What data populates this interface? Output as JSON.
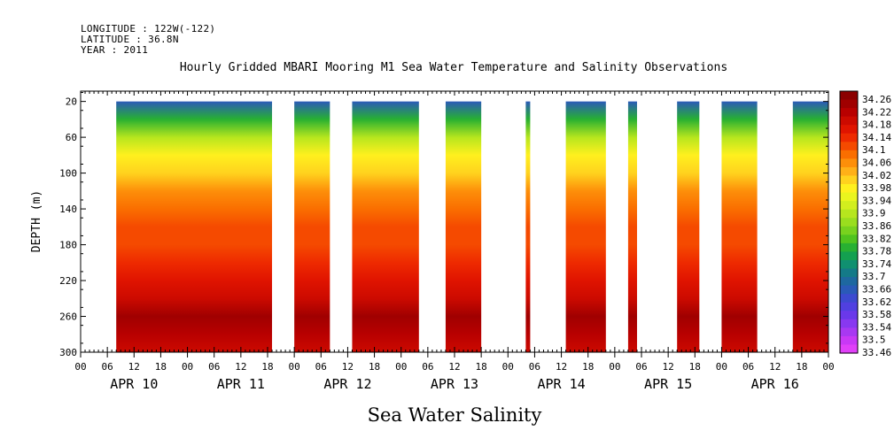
{
  "header": {
    "longitude": "LONGITUDE : 122W(-122)",
    "latitude": "LATITUDE : 36.8N",
    "year": "YEAR : 2011"
  },
  "chart_data": {
    "type": "heatmap",
    "title": "Hourly Gridded MBARI Mooring M1 Sea Water Temperature and Salinity Observations",
    "subtitle": "Sea Water Salinity",
    "xlabel": "",
    "ylabel": "DEPTH (m)",
    "x_unit": "hours since APR 10 00:00, 2011",
    "xlim": [
      0,
      168
    ],
    "ylim": [
      300,
      0
    ],
    "y_ticks": [
      20,
      60,
      100,
      140,
      180,
      220,
      260,
      300
    ],
    "x_tick_labels": [
      "00",
      "06",
      "12",
      "18",
      "00",
      "06",
      "12",
      "18",
      "00",
      "06",
      "12",
      "18",
      "00",
      "06",
      "12",
      "18",
      "00",
      "06",
      "12",
      "18",
      "00",
      "06",
      "12",
      "18",
      "00",
      "06",
      "12",
      "18",
      "00"
    ],
    "date_labels": [
      "APR 10",
      "APR 11",
      "APR 12",
      "APR 13",
      "APR 14",
      "APR 15",
      "APR 16"
    ],
    "data_segments_hours": [
      [
        8,
        43
      ],
      [
        48,
        56
      ],
      [
        61,
        76
      ],
      [
        82,
        90
      ],
      [
        100,
        101
      ],
      [
        109,
        118
      ],
      [
        123,
        125
      ],
      [
        134,
        139
      ],
      [
        144,
        152
      ],
      [
        160,
        169
      ]
    ],
    "depth_profile": [
      {
        "depth": 20,
        "salinity": 33.66
      },
      {
        "depth": 40,
        "salinity": 33.8
      },
      {
        "depth": 60,
        "salinity": 33.9
      },
      {
        "depth": 80,
        "salinity": 33.98
      },
      {
        "depth": 100,
        "salinity": 34.02
      },
      {
        "depth": 120,
        "salinity": 34.05
      },
      {
        "depth": 140,
        "salinity": 34.08
      },
      {
        "depth": 160,
        "salinity": 34.12
      },
      {
        "depth": 180,
        "salinity": 34.12
      },
      {
        "depth": 200,
        "salinity": 34.13
      },
      {
        "depth": 220,
        "salinity": 34.16
      },
      {
        "depth": 240,
        "salinity": 34.2
      },
      {
        "depth": 260,
        "salinity": 34.25
      },
      {
        "depth": 280,
        "salinity": 34.22
      },
      {
        "depth": 300,
        "salinity": 34.2
      }
    ],
    "colorbar": {
      "labels": [
        "34.26",
        "34.22",
        "34.18",
        "34.14",
        "34.1",
        "34.06",
        "34.02",
        "33.98",
        "33.94",
        "33.9",
        "33.86",
        "33.82",
        "33.78",
        "33.74",
        "33.7",
        "33.66",
        "33.62",
        "33.58",
        "33.54",
        "33.5",
        "33.46"
      ],
      "colors": [
        "#8b0000",
        "#a00000",
        "#b80000",
        "#cc0a00",
        "#e01400",
        "#ee2a00",
        "#f54a00",
        "#fa6e00",
        "#fd8f0a",
        "#ffb018",
        "#ffd21e",
        "#fff01e",
        "#eaf51e",
        "#d2ee1e",
        "#b6e61e",
        "#9ade1e",
        "#78d21e",
        "#50c31e",
        "#28b032",
        "#14a050",
        "#109070",
        "#147a88",
        "#1e68a0",
        "#2a5ab8",
        "#3c4ad0",
        "#5040e0",
        "#6a38ea",
        "#8838f0",
        "#a838f2",
        "#c838f5",
        "#e040f8"
      ]
    }
  }
}
